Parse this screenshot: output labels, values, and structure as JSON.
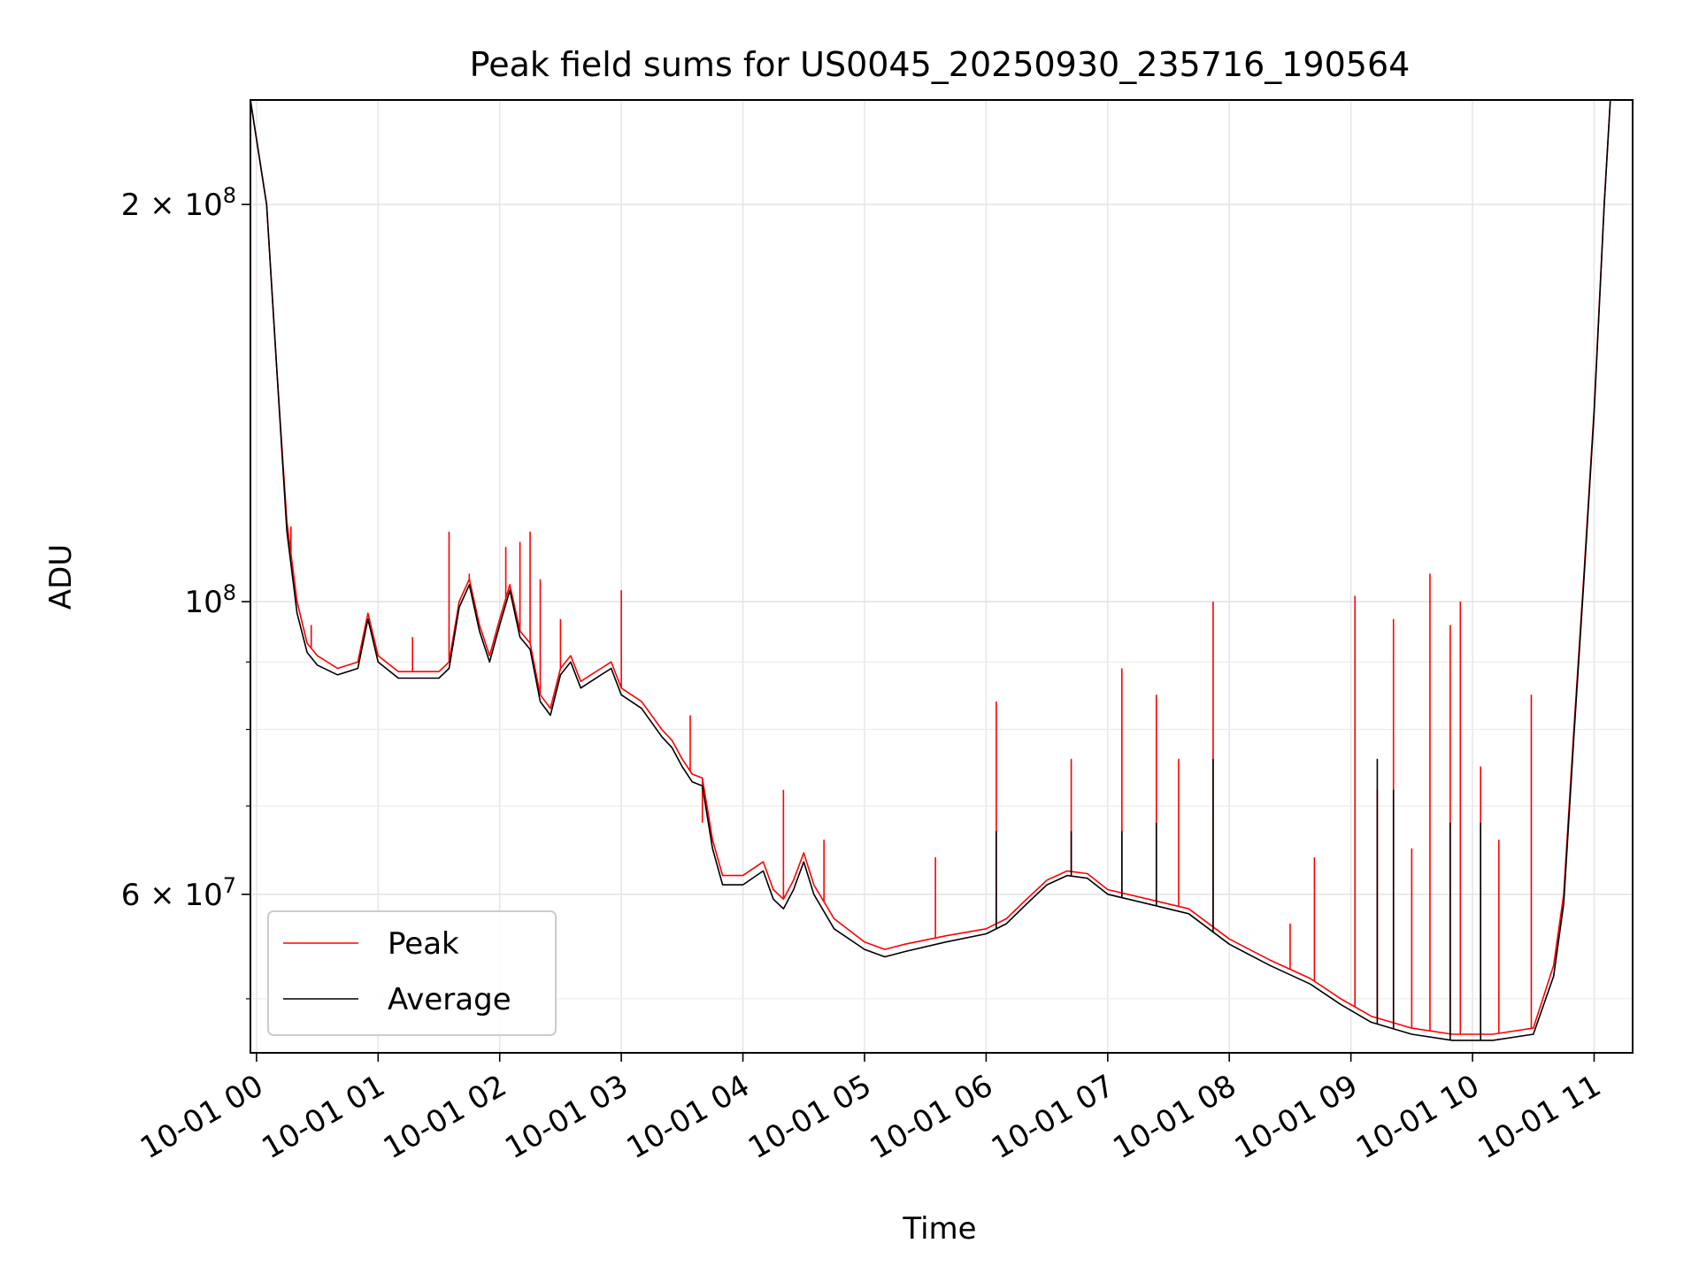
{
  "chart_data": {
    "type": "line",
    "title": "Peak field sums for US0045_20250930_235716_190564",
    "xlabel": "Time",
    "ylabel": "ADU",
    "y_scale": "log",
    "grid": true,
    "legend_placement": "lower-left",
    "x_range": [
      "2025-09-30 23:57",
      "2025-10-01 11:19"
    ],
    "ylim": [
      45500000,
      240000000
    ],
    "x_ticks": [
      "10-01 00",
      "10-01 01",
      "10-01 02",
      "10-01 03",
      "10-01 04",
      "10-01 05",
      "10-01 06",
      "10-01 07",
      "10-01 08",
      "10-01 09",
      "10-01 10",
      "10-01 11"
    ],
    "y_ticks_major": [
      {
        "value": 60000000,
        "mantissa": "6",
        "exponent": "7"
      },
      {
        "value": 100000000,
        "mantissa": "",
        "exponent": "8"
      },
      {
        "value": 200000000,
        "mantissa": "2",
        "exponent": "8"
      }
    ],
    "y_ticks_minor": [
      50000000,
      70000000,
      80000000,
      90000000,
      300000000
    ],
    "series": [
      {
        "name": "Peak",
        "color": "#ff0000",
        "points": [
          [
            "2025-09-30 23:57",
            240000000
          ],
          [
            "2025-10-01 00:05",
            200000000
          ],
          [
            "2025-10-01 00:10",
            150000000
          ],
          [
            "2025-10-01 00:15",
            115000000
          ],
          [
            "2025-10-01 00:20",
            100000000
          ],
          [
            "2025-10-01 00:25",
            93000000
          ],
          [
            "2025-10-01 00:30",
            91000000
          ],
          [
            "2025-10-01 00:40",
            89000000
          ],
          [
            "2025-10-01 00:50",
            90000000
          ],
          [
            "2025-10-01 00:55",
            98000000
          ],
          [
            "2025-10-01 01:00",
            91000000
          ],
          [
            "2025-10-01 01:10",
            88500000
          ],
          [
            "2025-10-01 01:20",
            88500000
          ],
          [
            "2025-10-01 01:30",
            88500000
          ],
          [
            "2025-10-01 01:35",
            90000000
          ],
          [
            "2025-10-01 01:40",
            100000000
          ],
          [
            "2025-10-01 01:45",
            104000000
          ],
          [
            "2025-10-01 01:50",
            96000000
          ],
          [
            "2025-10-01 01:55",
            91000000
          ],
          [
            "2025-10-01 02:00",
            97000000
          ],
          [
            "2025-10-01 02:05",
            103000000
          ],
          [
            "2025-10-01 02:10",
            95000000
          ],
          [
            "2025-10-01 02:15",
            93000000
          ],
          [
            "2025-10-01 02:20",
            85000000
          ],
          [
            "2025-10-01 02:25",
            83000000
          ],
          [
            "2025-10-01 02:30",
            89000000
          ],
          [
            "2025-10-01 02:35",
            91000000
          ],
          [
            "2025-10-01 02:40",
            87000000
          ],
          [
            "2025-10-01 02:50",
            89000000
          ],
          [
            "2025-10-01 02:55",
            90000000
          ],
          [
            "2025-10-01 03:00",
            86000000
          ],
          [
            "2025-10-01 03:10",
            84000000
          ],
          [
            "2025-10-01 03:20",
            80000000
          ],
          [
            "2025-10-01 03:25",
            78500000
          ],
          [
            "2025-10-01 03:30",
            76000000
          ],
          [
            "2025-10-01 03:35",
            74000000
          ],
          [
            "2025-10-01 03:40",
            73500000
          ],
          [
            "2025-10-01 03:45",
            66000000
          ],
          [
            "2025-10-01 03:50",
            62000000
          ],
          [
            "2025-10-01 04:00",
            62000000
          ],
          [
            "2025-10-01 04:10",
            63500000
          ],
          [
            "2025-10-01 04:15",
            60500000
          ],
          [
            "2025-10-01 04:20",
            59500000
          ],
          [
            "2025-10-01 04:25",
            61500000
          ],
          [
            "2025-10-01 04:30",
            64500000
          ],
          [
            "2025-10-01 04:35",
            61000000
          ],
          [
            "2025-10-01 04:45",
            57500000
          ],
          [
            "2025-10-01 05:00",
            55200000
          ],
          [
            "2025-10-01 05:10",
            54500000
          ],
          [
            "2025-10-01 05:20",
            55000000
          ],
          [
            "2025-10-01 05:40",
            55800000
          ],
          [
            "2025-10-01 06:00",
            56500000
          ],
          [
            "2025-10-01 06:10",
            57500000
          ],
          [
            "2025-10-01 06:20",
            59500000
          ],
          [
            "2025-10-01 06:30",
            61500000
          ],
          [
            "2025-10-01 06:40",
            62500000
          ],
          [
            "2025-10-01 06:50",
            62200000
          ],
          [
            "2025-10-01 07:00",
            60500000
          ],
          [
            "2025-10-01 07:20",
            59500000
          ],
          [
            "2025-10-01 07:40",
            58500000
          ],
          [
            "2025-10-01 08:00",
            55500000
          ],
          [
            "2025-10-01 08:20",
            53500000
          ],
          [
            "2025-10-01 08:40",
            51800000
          ],
          [
            "2025-10-01 08:55",
            50000000
          ],
          [
            "2025-10-01 09:10",
            48500000
          ],
          [
            "2025-10-01 09:30",
            47500000
          ],
          [
            "2025-10-01 09:50",
            47000000
          ],
          [
            "2025-10-01 10:10",
            47000000
          ],
          [
            "2025-10-01 10:30",
            47500000
          ],
          [
            "2025-10-01 10:40",
            53000000
          ],
          [
            "2025-10-01 10:45",
            60000000
          ],
          [
            "2025-10-01 10:50",
            80000000
          ],
          [
            "2025-10-01 10:55",
            105000000
          ],
          [
            "2025-10-01 11:00",
            140000000
          ],
          [
            "2025-10-01 11:05",
            200000000
          ],
          [
            "2025-10-01 11:08",
            240000000
          ],
          [
            "2025-10-01 11:19",
            240000000
          ]
        ],
        "spikes": [
          [
            "2025-10-01 00:17",
            114000000
          ],
          [
            "2025-10-01 00:27",
            96000000
          ],
          [
            "2025-10-01 01:17",
            94000000
          ],
          [
            "2025-10-01 01:35",
            113000000
          ],
          [
            "2025-10-01 01:45",
            105000000
          ],
          [
            "2025-10-01 02:03",
            110000000
          ],
          [
            "2025-10-01 02:10",
            111000000
          ],
          [
            "2025-10-01 02:15",
            113000000
          ],
          [
            "2025-10-01 02:20",
            104000000
          ],
          [
            "2025-10-01 02:30",
            97000000
          ],
          [
            "2025-10-01 03:00",
            102000000
          ],
          [
            "2025-10-01 03:34",
            82000000
          ],
          [
            "2025-10-01 03:40",
            68000000
          ],
          [
            "2025-10-01 04:20",
            72000000
          ],
          [
            "2025-10-01 04:40",
            66000000
          ],
          [
            "2025-10-01 05:35",
            64000000
          ],
          [
            "2025-10-01 06:05",
            84000000
          ],
          [
            "2025-10-01 06:42",
            76000000
          ],
          [
            "2025-10-01 07:07",
            89000000
          ],
          [
            "2025-10-01 07:24",
            85000000
          ],
          [
            "2025-10-01 07:35",
            76000000
          ],
          [
            "2025-10-01 07:52",
            100000000
          ],
          [
            "2025-10-01 08:30",
            57000000
          ],
          [
            "2025-10-01 08:42",
            64000000
          ],
          [
            "2025-10-01 09:02",
            101000000
          ],
          [
            "2025-10-01 09:13",
            72000000
          ],
          [
            "2025-10-01 09:21",
            97000000
          ],
          [
            "2025-10-01 09:30",
            65000000
          ],
          [
            "2025-10-01 09:39",
            105000000
          ],
          [
            "2025-10-01 09:49",
            96000000
          ],
          [
            "2025-10-01 09:54",
            100000000
          ],
          [
            "2025-10-01 10:04",
            75000000
          ],
          [
            "2025-10-01 10:13",
            66000000
          ],
          [
            "2025-10-01 10:29",
            85000000
          ]
        ]
      },
      {
        "name": "Average",
        "color": "#000000",
        "points": [
          [
            "2025-09-30 23:57",
            240000000
          ],
          [
            "2025-10-01 00:05",
            200000000
          ],
          [
            "2025-10-01 00:10",
            150000000
          ],
          [
            "2025-10-01 00:15",
            113000000
          ],
          [
            "2025-10-01 00:20",
            98000000
          ],
          [
            "2025-10-01 00:25",
            91500000
          ],
          [
            "2025-10-01 00:30",
            89500000
          ],
          [
            "2025-10-01 00:40",
            88000000
          ],
          [
            "2025-10-01 00:50",
            89000000
          ],
          [
            "2025-10-01 00:55",
            97000000
          ],
          [
            "2025-10-01 01:00",
            90000000
          ],
          [
            "2025-10-01 01:10",
            87500000
          ],
          [
            "2025-10-01 01:20",
            87500000
          ],
          [
            "2025-10-01 01:30",
            87500000
          ],
          [
            "2025-10-01 01:35",
            89000000
          ],
          [
            "2025-10-01 01:40",
            99000000
          ],
          [
            "2025-10-01 01:45",
            103000000
          ],
          [
            "2025-10-01 01:50",
            95000000
          ],
          [
            "2025-10-01 01:55",
            90000000
          ],
          [
            "2025-10-01 02:00",
            96000000
          ],
          [
            "2025-10-01 02:05",
            102000000
          ],
          [
            "2025-10-01 02:10",
            94000000
          ],
          [
            "2025-10-01 02:15",
            92000000
          ],
          [
            "2025-10-01 02:20",
            84000000
          ],
          [
            "2025-10-01 02:25",
            82000000
          ],
          [
            "2025-10-01 02:30",
            88000000
          ],
          [
            "2025-10-01 02:35",
            90000000
          ],
          [
            "2025-10-01 02:40",
            86000000
          ],
          [
            "2025-10-01 02:50",
            88000000
          ],
          [
            "2025-10-01 02:55",
            89000000
          ],
          [
            "2025-10-01 03:00",
            85000000
          ],
          [
            "2025-10-01 03:10",
            83000000
          ],
          [
            "2025-10-01 03:20",
            79000000
          ],
          [
            "2025-10-01 03:25",
            77500000
          ],
          [
            "2025-10-01 03:30",
            75000000
          ],
          [
            "2025-10-01 03:35",
            73000000
          ],
          [
            "2025-10-01 03:40",
            72500000
          ],
          [
            "2025-10-01 03:45",
            65000000
          ],
          [
            "2025-10-01 03:50",
            61000000
          ],
          [
            "2025-10-01 04:00",
            61000000
          ],
          [
            "2025-10-01 04:10",
            62500000
          ],
          [
            "2025-10-01 04:15",
            59500000
          ],
          [
            "2025-10-01 04:20",
            58500000
          ],
          [
            "2025-10-01 04:25",
            60500000
          ],
          [
            "2025-10-01 04:30",
            63500000
          ],
          [
            "2025-10-01 04:35",
            60000000
          ],
          [
            "2025-10-01 04:45",
            56500000
          ],
          [
            "2025-10-01 05:00",
            54500000
          ],
          [
            "2025-10-01 05:10",
            53800000
          ],
          [
            "2025-10-01 05:20",
            54300000
          ],
          [
            "2025-10-01 05:40",
            55200000
          ],
          [
            "2025-10-01 06:00",
            56000000
          ],
          [
            "2025-10-01 06:10",
            57000000
          ],
          [
            "2025-10-01 06:20",
            59000000
          ],
          [
            "2025-10-01 06:30",
            61000000
          ],
          [
            "2025-10-01 06:40",
            62000000
          ],
          [
            "2025-10-01 06:50",
            61700000
          ],
          [
            "2025-10-01 07:00",
            60000000
          ],
          [
            "2025-10-01 07:20",
            59000000
          ],
          [
            "2025-10-01 07:40",
            58000000
          ],
          [
            "2025-10-01 08:00",
            55000000
          ],
          [
            "2025-10-01 08:20",
            53000000
          ],
          [
            "2025-10-01 08:40",
            51300000
          ],
          [
            "2025-10-01 08:55",
            49500000
          ],
          [
            "2025-10-01 09:10",
            48000000
          ],
          [
            "2025-10-01 09:30",
            47000000
          ],
          [
            "2025-10-01 09:50",
            46500000
          ],
          [
            "2025-10-01 10:10",
            46500000
          ],
          [
            "2025-10-01 10:30",
            47000000
          ],
          [
            "2025-10-01 10:40",
            52000000
          ],
          [
            "2025-10-01 10:45",
            59000000
          ],
          [
            "2025-10-01 10:50",
            79000000
          ],
          [
            "2025-10-01 10:55",
            104000000
          ],
          [
            "2025-10-01 11:00",
            139000000
          ],
          [
            "2025-10-01 11:05",
            200000000
          ],
          [
            "2025-10-01 11:08",
            240000000
          ],
          [
            "2025-10-01 11:19",
            240000000
          ]
        ],
        "spikes": [
          [
            "2025-10-01 06:05",
            67000000
          ],
          [
            "2025-10-01 06:42",
            67000000
          ],
          [
            "2025-10-01 07:07",
            67000000
          ],
          [
            "2025-10-01 07:24",
            68000000
          ],
          [
            "2025-10-01 07:52",
            76000000
          ],
          [
            "2025-10-01 09:13",
            76000000
          ],
          [
            "2025-10-01 09:21",
            72000000
          ],
          [
            "2025-10-01 09:49",
            68000000
          ],
          [
            "2025-10-01 10:04",
            68000000
          ]
        ]
      }
    ]
  }
}
